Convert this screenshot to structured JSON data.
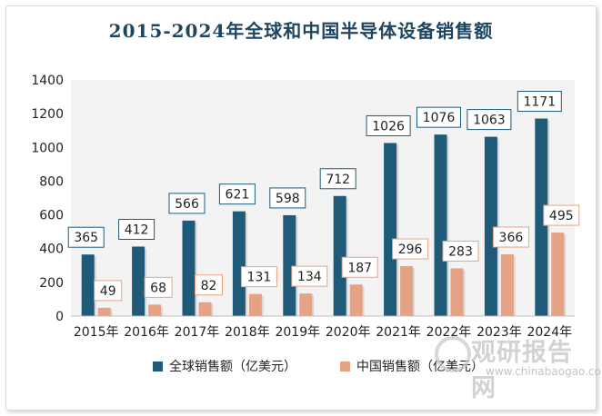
{
  "chart_data": {
    "type": "bar",
    "title": "2015-2024年全球和中国半导体设备销售额",
    "categories": [
      "2015年",
      "2016年",
      "2017年",
      "2018年",
      "2019年",
      "2020年",
      "2021年",
      "2022年",
      "2023年",
      "2024年"
    ],
    "series": [
      {
        "name": "全球销售额（亿美元）",
        "values": [
          365,
          412,
          566,
          621,
          598,
          712,
          1026,
          1076,
          1063,
          1171
        ]
      },
      {
        "name": "中国销售额（亿美元）",
        "values": [
          49,
          68,
          82,
          131,
          134,
          187,
          296,
          283,
          366,
          495
        ]
      }
    ],
    "ylim": [
      0,
      1400
    ],
    "yticks": [
      0,
      200,
      400,
      600,
      800,
      1000,
      1200,
      1400
    ],
    "legend_position": "bottom",
    "grid": false,
    "colors": {
      "global": "#1f5a78",
      "china": "#e5a284",
      "global_label_border": "#1f5a78",
      "china_label_border": "#e8a484",
      "title": "#1e4660"
    }
  },
  "watermark": {
    "text": "观研报告网",
    "url": "www.chinabaogao.com"
  }
}
